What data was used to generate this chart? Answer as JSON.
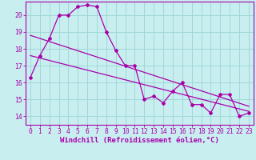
{
  "background_color": "#c8eef0",
  "line_color": "#aa00aa",
  "grid_color": "#a0d8d8",
  "xlabel": "Windchill (Refroidissement éolien,°C)",
  "xlabel_fontsize": 6.5,
  "tick_fontsize": 5.8,
  "ylim": [
    13.5,
    20.8
  ],
  "xlim": [
    -0.5,
    23.5
  ],
  "yticks": [
    14,
    15,
    16,
    17,
    18,
    19,
    20
  ],
  "xticks": [
    0,
    1,
    2,
    3,
    4,
    5,
    6,
    7,
    8,
    9,
    10,
    11,
    12,
    13,
    14,
    15,
    16,
    17,
    18,
    19,
    20,
    21,
    22,
    23
  ],
  "series1_x": [
    0,
    1,
    2,
    3,
    4,
    5,
    6,
    7,
    8,
    9,
    10,
    11,
    12,
    13,
    14,
    15,
    16,
    17,
    18,
    19,
    20,
    21,
    22,
    23
  ],
  "series1_y": [
    16.3,
    17.6,
    18.6,
    20.0,
    20.0,
    20.5,
    20.6,
    20.5,
    19.0,
    17.9,
    17.0,
    17.0,
    15.0,
    15.2,
    14.8,
    15.5,
    16.0,
    14.7,
    14.7,
    14.2,
    15.3,
    15.3,
    14.0,
    14.2
  ],
  "series2_x": [
    0,
    23
  ],
  "series2_y": [
    17.6,
    14.3
  ],
  "series3_x": [
    0,
    23
  ],
  "series3_y": [
    18.8,
    14.6
  ]
}
